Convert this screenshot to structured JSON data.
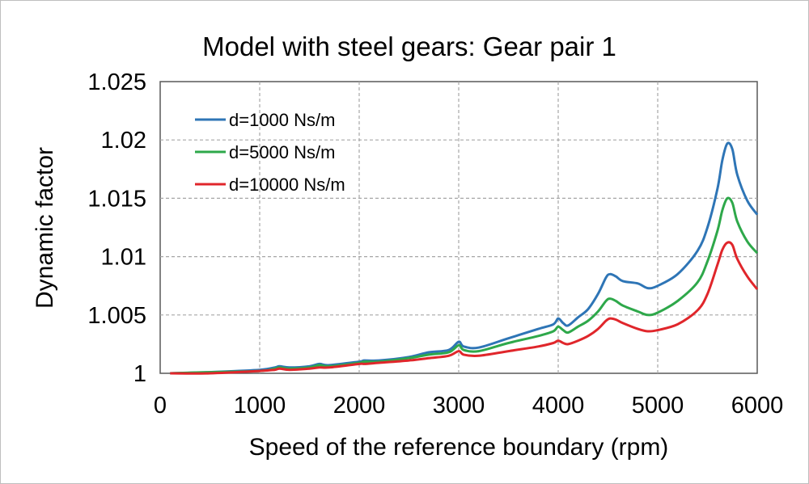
{
  "chart_data": {
    "type": "line",
    "title": "Model with steel gears: Gear pair 1",
    "xlabel": "Speed of the reference boundary (rpm)",
    "ylabel": "Dynamic factor",
    "xlim": [
      0,
      6000
    ],
    "ylim": [
      1,
      1.025
    ],
    "xticks": [
      "0",
      "1000",
      "2000",
      "3000",
      "4000",
      "5000",
      "6000"
    ],
    "yticks": [
      "1",
      "1.005",
      "1.01",
      "1.015",
      "1.02",
      "1.025"
    ],
    "grid": true,
    "legend_position": "top-left",
    "series": [
      {
        "name": "d=1000 Ns/m",
        "color": "#2E75B6",
        "x": [
          100,
          500,
          1000,
          1150,
          1200,
          1300,
          1500,
          1600,
          1700,
          2000,
          2050,
          2200,
          2500,
          2700,
          2900,
          3000,
          3050,
          3200,
          3500,
          3800,
          3950,
          4000,
          4050,
          4100,
          4200,
          4300,
          4400,
          4480,
          4520,
          4580,
          4650,
          4800,
          4900,
          5000,
          5200,
          5400,
          5500,
          5600,
          5650,
          5700,
          5750,
          5800,
          5900,
          6000
        ],
        "y": [
          1.0,
          1.0001,
          1.0003,
          1.0005,
          1.0006,
          1.0005,
          1.0006,
          1.0008,
          1.0007,
          1.001,
          1.0011,
          1.0011,
          1.0014,
          1.0018,
          1.002,
          1.0027,
          1.0023,
          1.0022,
          1.003,
          1.0038,
          1.0042,
          1.0047,
          1.0043,
          1.0041,
          1.0048,
          1.0055,
          1.0068,
          1.0082,
          1.0085,
          1.0083,
          1.0079,
          1.0077,
          1.0073,
          1.0075,
          1.0085,
          1.0105,
          1.0125,
          1.0158,
          1.0183,
          1.0197,
          1.0192,
          1.017,
          1.0148,
          1.0136
        ]
      },
      {
        "name": "d=5000 Ns/m",
        "color": "#2EA84A",
        "x": [
          100,
          500,
          1000,
          1150,
          1200,
          1300,
          1500,
          1600,
          1700,
          2000,
          2050,
          2200,
          2500,
          2700,
          2900,
          3000,
          3050,
          3200,
          3500,
          3800,
          3950,
          4000,
          4050,
          4100,
          4200,
          4300,
          4400,
          4480,
          4520,
          4580,
          4650,
          4800,
          4900,
          5000,
          5200,
          5400,
          5500,
          5600,
          5650,
          5700,
          5750,
          5800,
          5900,
          6000
        ],
        "y": [
          1.0,
          1.0001,
          1.0002,
          1.0004,
          1.0005,
          1.0004,
          1.0005,
          1.0007,
          1.0006,
          1.0009,
          1.001,
          1.001,
          1.0013,
          1.0016,
          1.0018,
          1.0024,
          1.002,
          1.0019,
          1.0026,
          1.0032,
          1.0036,
          1.004,
          1.0037,
          1.0035,
          1.004,
          1.0045,
          1.0053,
          1.0062,
          1.0064,
          1.0062,
          1.0058,
          1.0053,
          1.005,
          1.0052,
          1.0062,
          1.0078,
          1.0096,
          1.0122,
          1.014,
          1.015,
          1.0146,
          1.013,
          1.0113,
          1.0103
        ]
      },
      {
        "name": "d=10000 Ns/m",
        "color": "#E0262B",
        "x": [
          100,
          500,
          1000,
          1150,
          1200,
          1300,
          1500,
          1600,
          1700,
          2000,
          2050,
          2200,
          2500,
          2700,
          2900,
          3000,
          3050,
          3200,
          3500,
          3800,
          3950,
          4000,
          4050,
          4100,
          4200,
          4300,
          4400,
          4480,
          4520,
          4580,
          4650,
          4800,
          4900,
          5000,
          5200,
          5400,
          5500,
          5600,
          5650,
          5700,
          5750,
          5800,
          5900,
          6000
        ],
        "y": [
          1.0,
          1.0,
          1.0002,
          1.0003,
          1.0004,
          1.0003,
          1.0004,
          1.0005,
          1.0005,
          1.0008,
          1.0008,
          1.0009,
          1.0011,
          1.0013,
          1.0015,
          1.0019,
          1.0016,
          1.0015,
          1.0019,
          1.0023,
          1.0026,
          1.0028,
          1.0026,
          1.0025,
          1.0028,
          1.0032,
          1.0038,
          1.0045,
          1.0047,
          1.0046,
          1.0043,
          1.0038,
          1.0036,
          1.0037,
          1.0042,
          1.0054,
          1.0068,
          1.0093,
          1.0106,
          1.0112,
          1.011,
          1.0098,
          1.0083,
          1.0072
        ]
      }
    ]
  }
}
